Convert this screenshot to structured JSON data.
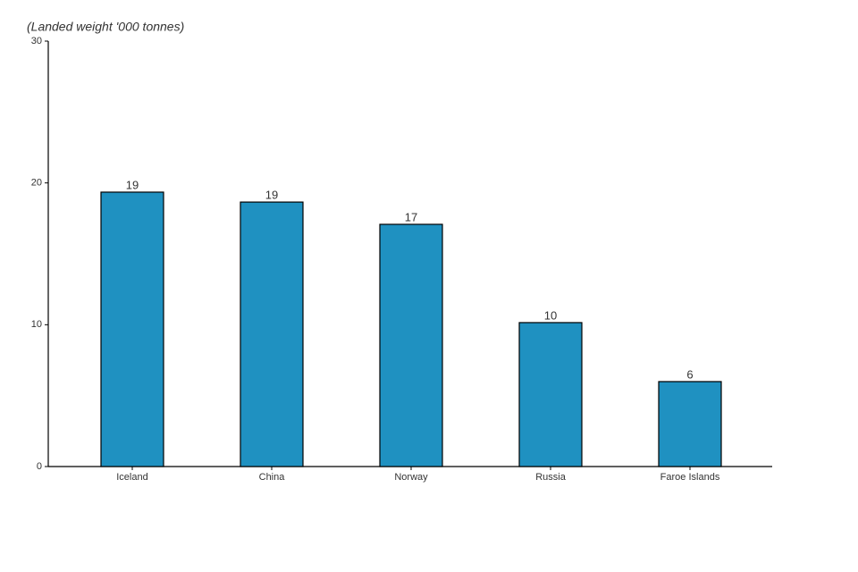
{
  "chart_data": {
    "type": "bar",
    "y_label": "(Landed weight '000 tonnes)",
    "categories": [
      "Iceland",
      "China",
      "Norway",
      "Russia",
      "Faroe Islands"
    ],
    "values": [
      19.35,
      18.65,
      17.08,
      10.15,
      5.99
    ],
    "value_labels": [
      "19",
      "19",
      "17",
      "10",
      "6"
    ],
    "color": "#1f91c1",
    "ylim": [
      0,
      30
    ],
    "yticks": [
      0,
      10,
      20,
      30
    ],
    "grid": false
  }
}
